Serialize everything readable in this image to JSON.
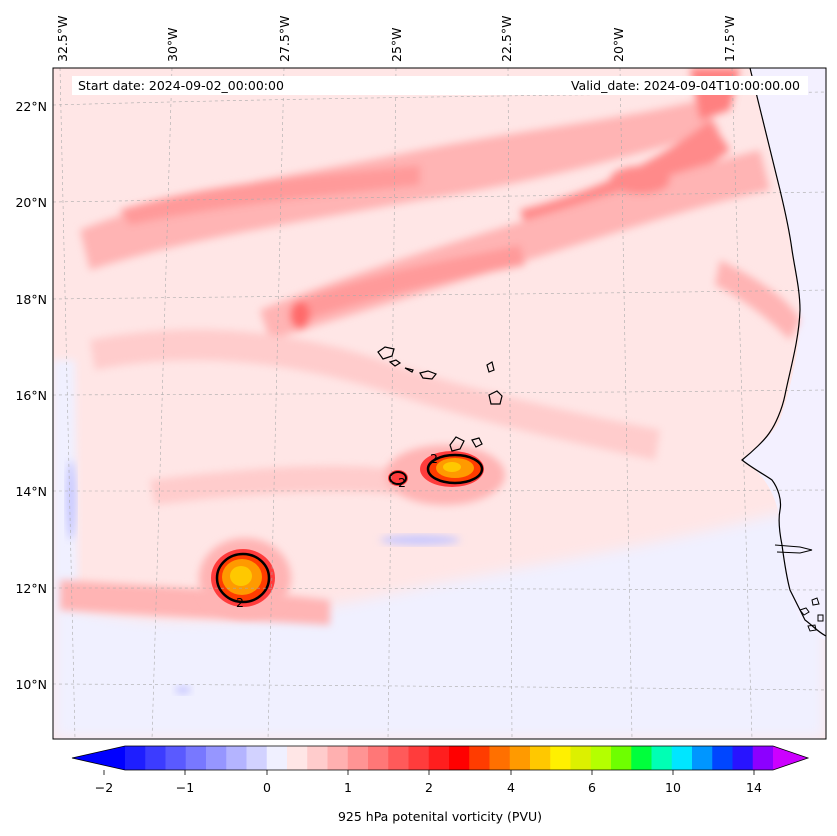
{
  "header": {
    "start_date": "Start date: 2024-09-02_00:00:00",
    "valid_date": "Valid_date: 2024-09-04T10:00:00.00"
  },
  "map": {
    "lon_ticks": [
      "32.5°W",
      "30°W",
      "27.5°W",
      "25°W",
      "22.5°W",
      "20°W",
      "17.5°W"
    ],
    "lat_ticks": [
      "22°N",
      "20°N",
      "18°N",
      "16°N",
      "14°N",
      "12°N",
      "10°N"
    ],
    "colors": {
      "background": "#ffe6e6",
      "land": "#fff0f0",
      "coastline": "#000000",
      "gridline": "#aaaaaa"
    },
    "contour_label": "2"
  },
  "colorbar": {
    "label": "925 hPa potenital vorticity (PVU)",
    "tick_labels": [
      "−2",
      "−1",
      "0",
      "1",
      "2",
      "4",
      "6",
      "10",
      "14"
    ],
    "colors": [
      "#1e1eff",
      "#3c3cff",
      "#5a5aff",
      "#7878ff",
      "#9696ff",
      "#b4b4ff",
      "#d2d2ff",
      "#f0f0ff",
      "#ffe6e6",
      "#ffcccc",
      "#ffb0b0",
      "#ff9494",
      "#ff7777",
      "#ff5a5a",
      "#ff3c3c",
      "#ff1e1e",
      "#ff0000",
      "#ff3c00",
      "#ff7000",
      "#ff9a00",
      "#ffc800",
      "#fff000",
      "#dcf000",
      "#b4ff00",
      "#6eff00",
      "#00ff3c",
      "#00ffb4",
      "#00e6ff",
      "#0096ff",
      "#0046ff",
      "#2814ff",
      "#8c00ff"
    ],
    "under_color": "#0000ff",
    "over_color": "#cc00ff"
  }
}
